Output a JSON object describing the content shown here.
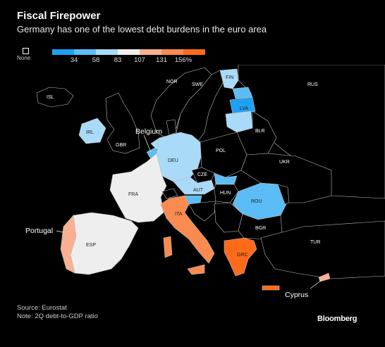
{
  "header": {
    "title": "Fiscal Firepower",
    "subtitle": "Germany has one of the lowest debt burdens in the euro area"
  },
  "legend": {
    "none_label": "None",
    "segments": [
      {
        "color": "#1ea1f2"
      },
      {
        "color": "#5cbcf5"
      },
      {
        "color": "#a9dbf9"
      },
      {
        "color": "#eeeeee"
      },
      {
        "color": "#f9b090"
      },
      {
        "color": "#f98a50"
      },
      {
        "color": "#ff6a1a"
      }
    ],
    "ticks": [
      "34",
      "58",
      "83",
      "107",
      "131",
      "156%"
    ]
  },
  "map": {
    "country_labels": [
      "ISL",
      "NOR",
      "SWE",
      "FIN",
      "RUS",
      "LVA",
      "IRL",
      "GBR",
      "BLR",
      "DEU",
      "POL",
      "UKR",
      "CZE",
      "AUT",
      "HUN",
      "FRA",
      "ROU",
      "ITA",
      "BGR",
      "ESP",
      "GRC",
      "TUR"
    ],
    "callouts": {
      "belgium": "Belgium",
      "portugal": "Portugal",
      "cyprus": "Cyprus"
    },
    "colors": {
      "none": "#000000",
      "border": "#bbbbbb",
      "deu": "#a9dbf9",
      "fin": "#a9dbf9",
      "lva": "#1ea1f2",
      "irl": "#a9dbf9",
      "aut": "#a9dbf9",
      "rou": "#5cbcf5",
      "hun": "#5cbcf5",
      "fra": "#eeeeee",
      "esp": "#eeeeee",
      "prt": "#f9b090",
      "ita": "#f98a50",
      "grc": "#ff6a1a",
      "cyp": "#f9b090"
    }
  },
  "footer": {
    "source": "Source: Eurostat",
    "note": "Note: 2Q debt-to-GDP ratio",
    "brand": "Bloomberg"
  }
}
